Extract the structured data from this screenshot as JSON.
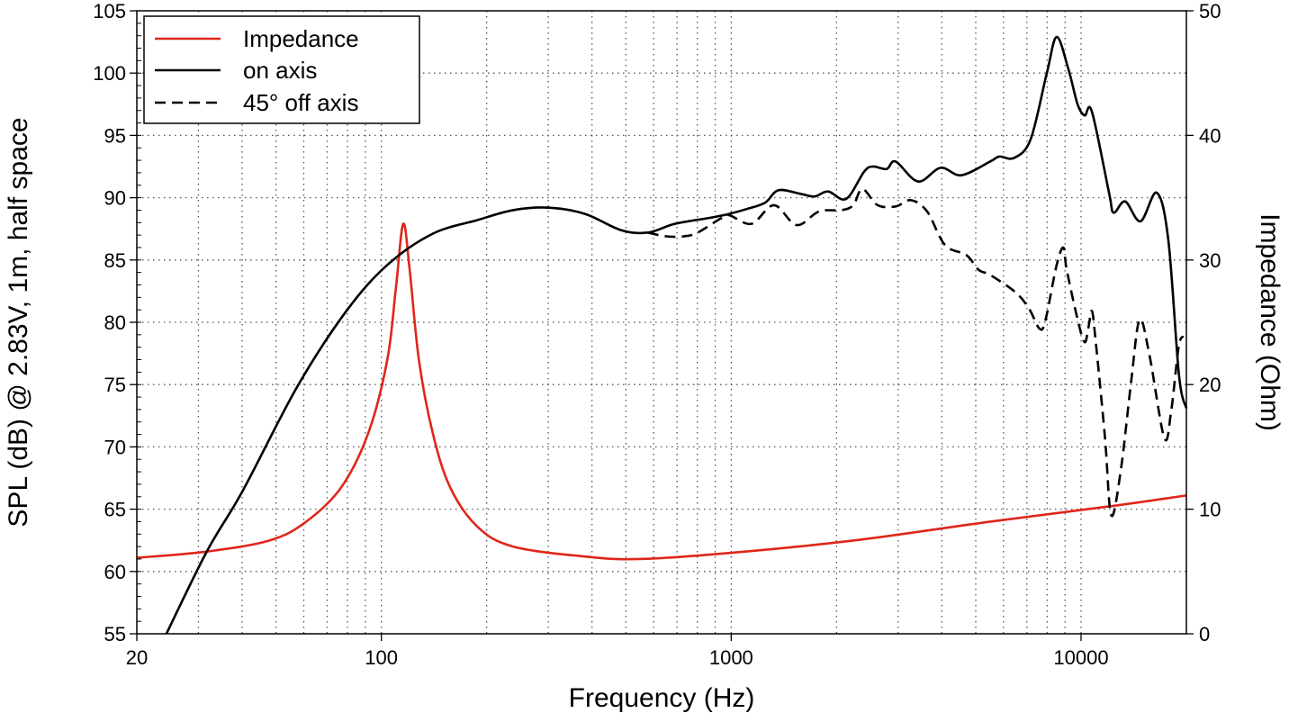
{
  "chart_data": {
    "type": "line",
    "title": "",
    "xlabel": "Frequency (Hz)",
    "ylabel": "SPL (dB) @ 2.83V, 1m, half space",
    "y2label": "Impedance (Ohm)",
    "xscale": "log",
    "xlim": [
      20,
      20000
    ],
    "ylim": [
      55,
      105
    ],
    "y2lim": [
      0,
      50
    ],
    "xticks": [
      20,
      100,
      1000,
      10000
    ],
    "xtick_labels": [
      "20",
      "100",
      "1000",
      "10000"
    ],
    "yticks": [
      55,
      60,
      65,
      70,
      75,
      80,
      85,
      90,
      95,
      100,
      105
    ],
    "ytick_labels": [
      "55",
      "60",
      "65",
      "70",
      "75",
      "80",
      "85",
      "90",
      "95",
      "100",
      "105"
    ],
    "y2ticks": [
      0,
      10,
      20,
      30,
      40,
      50
    ],
    "y2tick_labels": [
      "0",
      "10",
      "20",
      "30",
      "40",
      "50"
    ],
    "grid": true,
    "legend_placement": "top-left",
    "series": [
      {
        "name": "Impedance",
        "axis": "right",
        "color": "#e0261b",
        "style": "solid",
        "x": [
          20,
          31.7,
          48,
          61,
          77,
          92,
          104,
          110,
          115.5,
          120.5,
          128,
          140,
          157,
          188,
          238,
          382,
          546,
          1000,
          2260,
          5500,
          11860,
          20000
        ],
        "y": [
          6.1,
          6.6,
          7.5,
          9.0,
          11.8,
          16.2,
          22.0,
          27.7,
          32.9,
          29.2,
          22.0,
          16.2,
          11.8,
          8.6,
          7.0,
          6.2,
          6.0,
          6.5,
          7.5,
          9.0,
          10.2,
          11.1
        ]
      },
      {
        "name": "on axis",
        "axis": "left",
        "color": "#000000",
        "style": "solid",
        "x": [
          24.3,
          31.7,
          40.2,
          57.4,
          79.4,
          104,
          140,
          188,
          238,
          301,
          382,
          484,
          578,
          690,
          875,
          986,
          1110,
          1250,
          1366,
          1584,
          1731,
          1893,
          2130,
          2400,
          2543,
          2780,
          2952,
          3421,
          3967,
          4547,
          5496,
          5834,
          6446,
          7178,
          7983,
          8518,
          9204,
          9773,
          10240,
          10740,
          12020,
          12390,
          13370,
          14790,
          16460,
          17760,
          19060,
          20000
        ],
        "y": [
          55,
          61.6,
          66.5,
          74.8,
          80.9,
          84.6,
          87.1,
          88.2,
          89.0,
          89.2,
          88.7,
          87.4,
          87.2,
          87.9,
          88.4,
          88.7,
          89.1,
          89.6,
          90.6,
          90.3,
          90.1,
          90.5,
          89.9,
          92.1,
          92.5,
          92.3,
          92.9,
          91.3,
          92.4,
          91.8,
          92.9,
          93.3,
          93.2,
          94.7,
          100.0,
          102.9,
          100.3,
          97.5,
          96.6,
          96.9,
          90.4,
          88.8,
          89.7,
          88.1,
          90.4,
          86.6,
          75.7,
          73.1
        ]
      },
      {
        "name": "45° off axis",
        "axis": "left",
        "color": "#000000",
        "style": "dashed",
        "x": [
          578,
          651,
          733,
          802,
          929,
          986,
          1143,
          1325,
          1538,
          1783,
          2066,
          2233,
          2371,
          2620,
          2952,
          3262,
          3630,
          4083,
          4700,
          5100,
          5500,
          6500,
          7100,
          7600,
          7900,
          8500,
          8900,
          9100,
          9800,
          10240,
          10500,
          10740,
          11000,
          11700,
          12200,
          13000,
          13900,
          14700,
          15700,
          17300,
          18100,
          19000,
          19600
        ],
        "y": [
          87.2,
          86.9,
          86.9,
          87.2,
          88.3,
          88.6,
          87.9,
          89.4,
          87.8,
          88.9,
          89.0,
          89.4,
          90.7,
          89.4,
          89.3,
          89.8,
          88.9,
          86.2,
          85.4,
          84.2,
          83.8,
          82.4,
          81.1,
          79.5,
          80.1,
          84.5,
          86.0,
          84.2,
          80.1,
          78.4,
          79.6,
          80.9,
          78.6,
          70.8,
          64.5,
          68.2,
          75.2,
          80.2,
          77.3,
          70.7,
          72.9,
          78.0,
          78.9
        ]
      }
    ]
  }
}
